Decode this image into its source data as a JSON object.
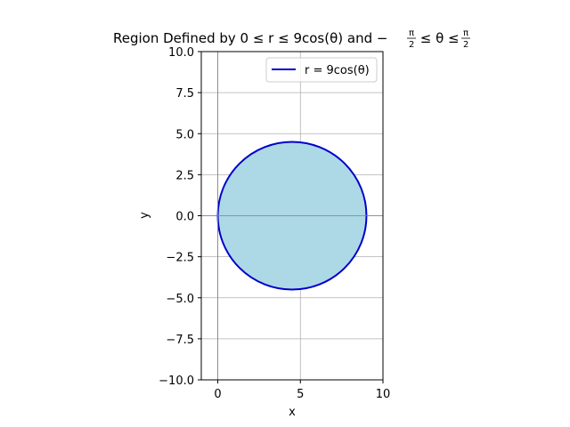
{
  "chart_data": {
    "type": "area",
    "title_parts": {
      "lead": "Region Defined by 0 ≤ r ≤ 9cos(θ) and −",
      "frac_num": "π",
      "frac_den": "2",
      "middle": " ≤ θ ≤ ",
      "frac2_num": "π",
      "frac2_den": "2"
    },
    "xlabel": "x",
    "ylabel": "y",
    "xlim": [
      -1,
      10
    ],
    "ylim": [
      -10,
      10
    ],
    "xticks": [
      0,
      5,
      10
    ],
    "xtick_labels": [
      "0",
      "5",
      "10"
    ],
    "yticks": [
      -10,
      -7.5,
      -5,
      -2.5,
      0,
      2.5,
      5,
      7.5,
      10
    ],
    "ytick_labels": [
      "−10.0",
      "−7.5",
      "−5.0",
      "−2.5",
      "0.0",
      "2.5",
      "5.0",
      "7.5",
      "10.0"
    ],
    "grid": true,
    "legend_placement": "upper-right",
    "series": [
      {
        "name": "r = 9cos(θ)",
        "polar": {
          "r_expr": "9cos(θ)",
          "theta_range": [
            -1.5708,
            1.5708
          ]
        },
        "circle": {
          "center": [
            4.5,
            0
          ],
          "radius": 4.5
        },
        "color": "#0000cc",
        "fill": "#add8e6"
      }
    ]
  }
}
